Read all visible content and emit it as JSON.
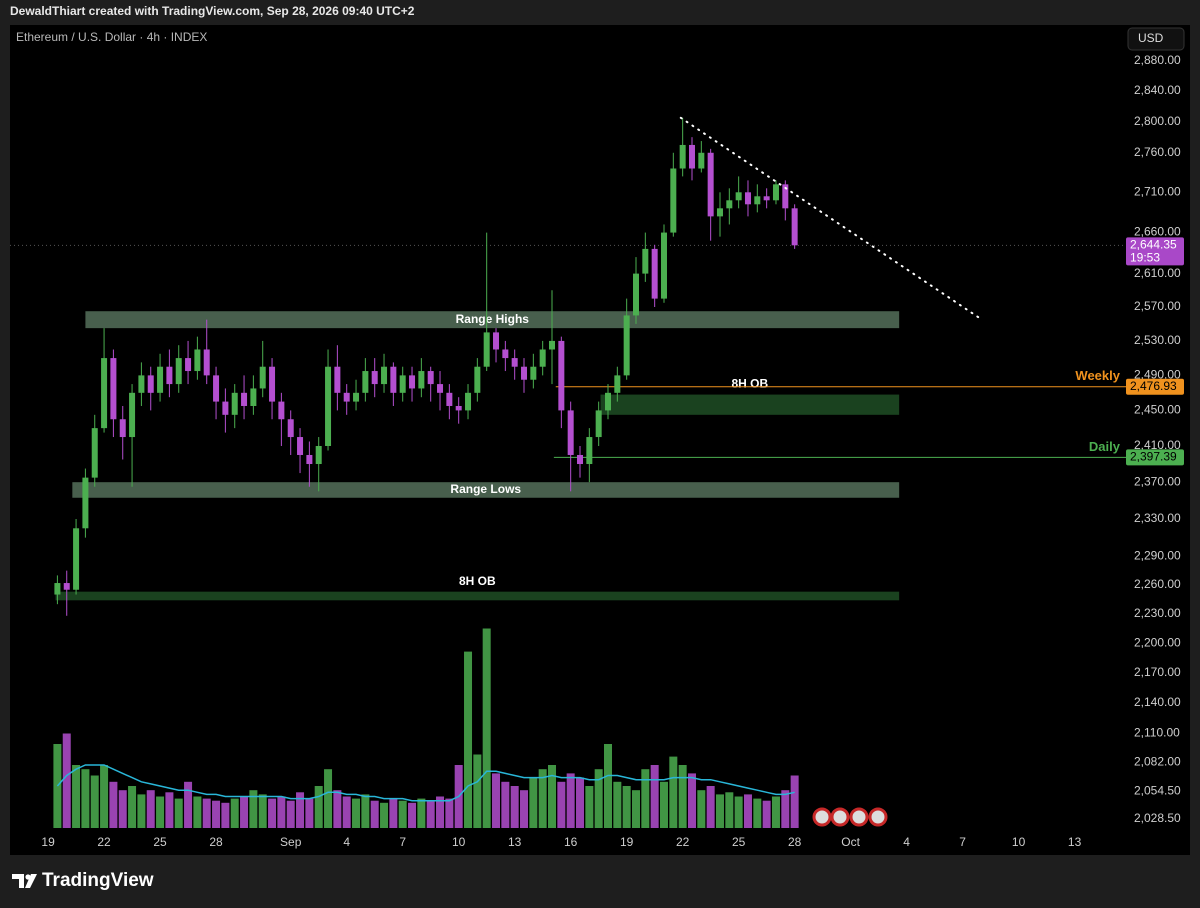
{
  "chart_data": {
    "type": "candlestick",
    "header": "DewaldThiart created with TradingView.com, Sep 28, 2026 09:40 UTC+2",
    "title": "Ethereum / U.S. Dollar · 4h · INDEX",
    "currency": "USD",
    "brand": "TradingView",
    "ylog": true,
    "grid": false,
    "up_color": "#4caf50",
    "down_color": "#b44fd0",
    "ma_color": "#29b6d8",
    "xlim": [
      -2.04,
      57.7
    ],
    "xticks": [
      {
        "value": 0,
        "label": "19"
      },
      {
        "value": 3,
        "label": "22"
      },
      {
        "value": 6,
        "label": "25"
      },
      {
        "value": 9,
        "label": "28"
      },
      {
        "value": 13,
        "label": "Sep"
      },
      {
        "value": 16,
        "label": "4"
      },
      {
        "value": 19,
        "label": "7"
      },
      {
        "value": 22,
        "label": "10"
      },
      {
        "value": 25,
        "label": "13"
      },
      {
        "value": 28,
        "label": "16"
      },
      {
        "value": 31,
        "label": "19"
      },
      {
        "value": 34,
        "label": "22"
      },
      {
        "value": 37,
        "label": "25"
      },
      {
        "value": 40,
        "label": "28"
      },
      {
        "value": 43,
        "label": "Oct"
      },
      {
        "value": 46,
        "label": "4"
      },
      {
        "value": 49,
        "label": "7"
      },
      {
        "value": 52,
        "label": "10"
      },
      {
        "value": 55,
        "label": "13"
      }
    ],
    "ylim": [
      2016,
      2928
    ],
    "yticks": [
      {
        "value": 2880,
        "label": "2,880.00"
      },
      {
        "value": 2840,
        "label": "2,840.00"
      },
      {
        "value": 2800,
        "label": "2,800.00"
      },
      {
        "value": 2760,
        "label": "2,760.00"
      },
      {
        "value": 2710,
        "label": "2,710.00"
      },
      {
        "value": 2660,
        "label": "2,660.00"
      },
      {
        "value": 2610,
        "label": "2,610.00"
      },
      {
        "value": 2570,
        "label": "2,570.00"
      },
      {
        "value": 2530,
        "label": "2,530.00"
      },
      {
        "value": 2490,
        "label": "2,490.00"
      },
      {
        "value": 2450,
        "label": "2,450.00"
      },
      {
        "value": 2410,
        "label": "2,410.00"
      },
      {
        "value": 2370,
        "label": "2,370.00"
      },
      {
        "value": 2330,
        "label": "2,330.00"
      },
      {
        "value": 2290,
        "label": "2,290.00"
      },
      {
        "value": 2260,
        "label": "2,260.00"
      },
      {
        "value": 2230,
        "label": "2,230.00"
      },
      {
        "value": 2200,
        "label": "2,200.00"
      },
      {
        "value": 2170,
        "label": "2,170.00"
      },
      {
        "value": 2140,
        "label": "2,140.00"
      },
      {
        "value": 2110,
        "label": "2,110.00"
      },
      {
        "value": 2082,
        "label": "2,082.00"
      },
      {
        "value": 2054.5,
        "label": "2,054.50"
      },
      {
        "value": 2028.5,
        "label": "2,028.50"
      }
    ],
    "x": [
      0.5,
      1,
      1.5,
      2,
      2.5,
      3,
      3.5,
      4,
      4.5,
      5,
      5.5,
      6,
      6.5,
      7,
      7.5,
      8,
      8.5,
      9,
      9.5,
      10,
      10.5,
      11,
      11.5,
      12,
      12.5,
      13,
      13.5,
      14,
      14.5,
      15,
      15.5,
      16,
      16.5,
      17,
      17.5,
      18,
      18.5,
      19,
      19.5,
      20,
      20.5,
      21,
      21.5,
      22,
      22.5,
      23,
      23.5,
      24,
      24.5,
      25,
      25.5,
      26,
      26.5,
      27,
      27.5,
      28,
      28.5,
      29,
      29.5,
      30,
      30.5,
      31,
      31.5,
      32,
      32.5,
      33,
      33.5,
      34,
      34.5,
      35,
      35.5,
      36,
      36.5,
      37,
      37.5,
      38,
      38.5,
      39,
      39.5,
      40
    ],
    "open": [
      2250,
      2262,
      2255,
      2320,
      2375,
      2430,
      2510,
      2440,
      2420,
      2470,
      2490,
      2470,
      2500,
      2480,
      2510,
      2495,
      2520,
      2490,
      2460,
      2445,
      2470,
      2455,
      2475,
      2500,
      2460,
      2440,
      2420,
      2400,
      2390,
      2410,
      2500,
      2470,
      2460,
      2470,
      2495,
      2480,
      2500,
      2470,
      2490,
      2475,
      2495,
      2480,
      2470,
      2455,
      2450,
      2470,
      2500,
      2540,
      2520,
      2510,
      2500,
      2485,
      2500,
      2520,
      2530,
      2450,
      2400,
      2390,
      2420,
      2450,
      2470,
      2490,
      2560,
      2610,
      2640,
      2580,
      2660,
      2740,
      2770,
      2740,
      2760,
      2680,
      2690,
      2700,
      2710,
      2695,
      2705,
      2700,
      2720,
      2690
    ],
    "high": [
      2270,
      2275,
      2330,
      2385,
      2445,
      2545,
      2520,
      2455,
      2480,
      2505,
      2500,
      2515,
      2520,
      2525,
      2530,
      2535,
      2555,
      2500,
      2475,
      2480,
      2490,
      2490,
      2530,
      2510,
      2470,
      2450,
      2430,
      2415,
      2420,
      2520,
      2525,
      2480,
      2485,
      2510,
      2510,
      2515,
      2505,
      2500,
      2500,
      2510,
      2500,
      2495,
      2480,
      2465,
      2480,
      2510,
      2660,
      2545,
      2530,
      2520,
      2510,
      2515,
      2530,
      2590,
      2535,
      2460,
      2410,
      2430,
      2460,
      2480,
      2500,
      2580,
      2630,
      2660,
      2645,
      2670,
      2760,
      2805,
      2780,
      2775,
      2765,
      2710,
      2715,
      2730,
      2725,
      2720,
      2715,
      2725,
      2725,
      2695
    ],
    "low": [
      2240,
      2228,
      2250,
      2310,
      2365,
      2425,
      2420,
      2395,
      2365,
      2455,
      2450,
      2460,
      2465,
      2470,
      2480,
      2485,
      2480,
      2440,
      2425,
      2430,
      2440,
      2445,
      2465,
      2440,
      2410,
      2400,
      2380,
      2365,
      2360,
      2405,
      2450,
      2445,
      2450,
      2460,
      2465,
      2470,
      2455,
      2460,
      2460,
      2465,
      2460,
      2450,
      2440,
      2435,
      2440,
      2460,
      2495,
      2505,
      2495,
      2485,
      2470,
      2475,
      2490,
      2480,
      2430,
      2360,
      2375,
      2370,
      2410,
      2440,
      2460,
      2485,
      2550,
      2600,
      2570,
      2575,
      2655,
      2730,
      2725,
      2735,
      2650,
      2655,
      2670,
      2690,
      2680,
      2685,
      2690,
      2695,
      2675,
      2640
    ],
    "close": [
      2262,
      2255,
      2320,
      2375,
      2430,
      2510,
      2440,
      2420,
      2470,
      2490,
      2470,
      2500,
      2480,
      2510,
      2495,
      2520,
      2490,
      2460,
      2445,
      2470,
      2455,
      2475,
      2500,
      2460,
      2440,
      2420,
      2400,
      2390,
      2410,
      2500,
      2470,
      2460,
      2470,
      2495,
      2480,
      2500,
      2470,
      2490,
      2475,
      2495,
      2480,
      2470,
      2455,
      2450,
      2470,
      2500,
      2540,
      2520,
      2510,
      2500,
      2485,
      2500,
      2520,
      2530,
      2450,
      2400,
      2390,
      2420,
      2450,
      2470,
      2490,
      2560,
      2610,
      2640,
      2580,
      2660,
      2740,
      2770,
      2740,
      2760,
      2680,
      2690,
      2700,
      2710,
      2695,
      2705,
      2700,
      2720,
      2690,
      2644.35
    ],
    "vlim": [
      0,
      100
    ],
    "volume": [
      40,
      45,
      30,
      28,
      25,
      30,
      22,
      18,
      20,
      16,
      18,
      15,
      17,
      14,
      22,
      15,
      14,
      13,
      12,
      14,
      15,
      18,
      16,
      14,
      15,
      13,
      17,
      14,
      20,
      28,
      18,
      15,
      14,
      16,
      13,
      12,
      14,
      13,
      12,
      14,
      13,
      15,
      14,
      30,
      84,
      35,
      95,
      26,
      22,
      20,
      18,
      24,
      28,
      30,
      22,
      26,
      24,
      20,
      28,
      40,
      22,
      20,
      18,
      28,
      30,
      22,
      34,
      30,
      26,
      18,
      20,
      16,
      17,
      15,
      16,
      14,
      13,
      15,
      18,
      25
    ],
    "volume_ma": [
      20,
      25,
      28,
      30,
      30,
      30,
      28,
      26,
      24,
      22,
      21,
      20,
      19,
      18,
      18,
      17,
      16,
      16,
      15,
      15,
      15,
      15,
      15,
      15,
      15,
      14,
      14,
      14,
      15,
      17,
      17,
      16,
      16,
      15,
      15,
      14,
      14,
      14,
      13,
      13,
      13,
      13,
      13,
      15,
      20,
      22,
      27,
      27,
      26,
      25,
      24,
      24,
      24,
      25,
      24,
      24,
      24,
      23,
      23,
      25,
      25,
      24,
      23,
      23,
      23,
      23,
      24,
      24,
      24,
      23,
      23,
      22,
      21,
      20,
      19,
      18,
      17,
      16,
      16,
      17
    ],
    "zones": [
      {
        "label": "Range Highs",
        "low": 2545,
        "high": 2565,
        "x0": 2.0,
        "x1": 45.6,
        "color": "#55705a",
        "label_position": "inside"
      },
      {
        "label": "Range Lows",
        "low": 2353,
        "high": 2370,
        "x0": 1.3,
        "x1": 45.6,
        "color": "#55705a",
        "label_position": "inside"
      },
      {
        "label": "8H OB",
        "low": 2445,
        "high": 2468,
        "x0": 29.6,
        "x1": 45.6,
        "color": "#1f4d24",
        "label_position": "above"
      },
      {
        "label": "8H OB",
        "low": 2244,
        "high": 2253,
        "x0": 0.4,
        "x1": 45.6,
        "color": "#1f4d24",
        "label_position": "above"
      }
    ],
    "levels": [
      {
        "label": "Weekly",
        "price": {
          "value": 2476.93,
          "label": "2,476.93"
        },
        "x0": 27.2,
        "color": "#f0921e"
      },
      {
        "label": "Daily",
        "price": {
          "value": 2397.39,
          "label": "2,397.39"
        },
        "x0": 27.1,
        "color": "#4caf50"
      }
    ],
    "last_price": {
      "value": 2644.35,
      "label": "2,644.35",
      "countdown": "19:53",
      "color": "#a948c8"
    },
    "trendline": {
      "x": [
        33.9,
        49.9
      ],
      "y": [
        2805,
        2557
      ]
    }
  }
}
